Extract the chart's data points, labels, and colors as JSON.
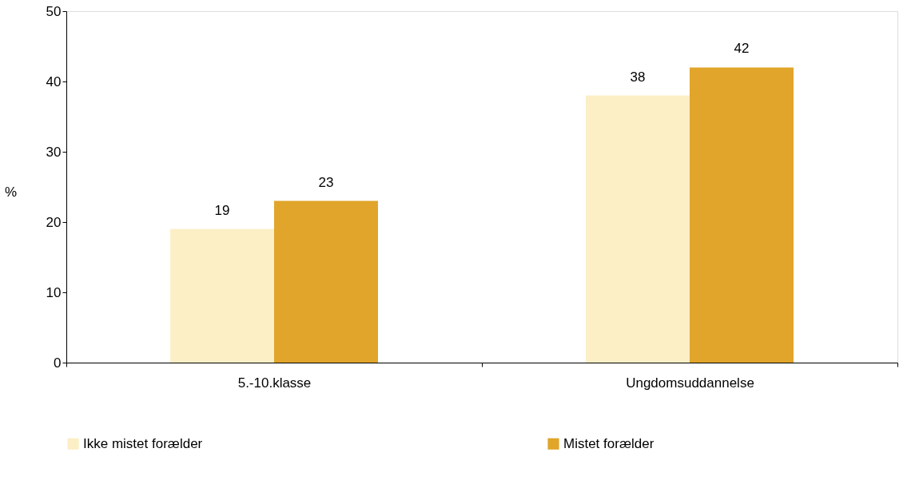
{
  "chart_data": {
    "type": "bar",
    "ylabel": "%",
    "categories": [
      "5.-10.klasse",
      "Ungdomsuddannelse"
    ],
    "series": [
      {
        "name": "Ikke mistet forælder",
        "color": "#fcefc6",
        "values": [
          19,
          38
        ]
      },
      {
        "name": "Mistet forælder",
        "color": "#e0a52a",
        "values": [
          23,
          42
        ]
      }
    ],
    "ylim": [
      0,
      50
    ],
    "yticks": [
      0,
      10,
      20,
      30,
      40,
      50
    ],
    "grid": false,
    "legend": "bottom",
    "data_labels": true
  }
}
